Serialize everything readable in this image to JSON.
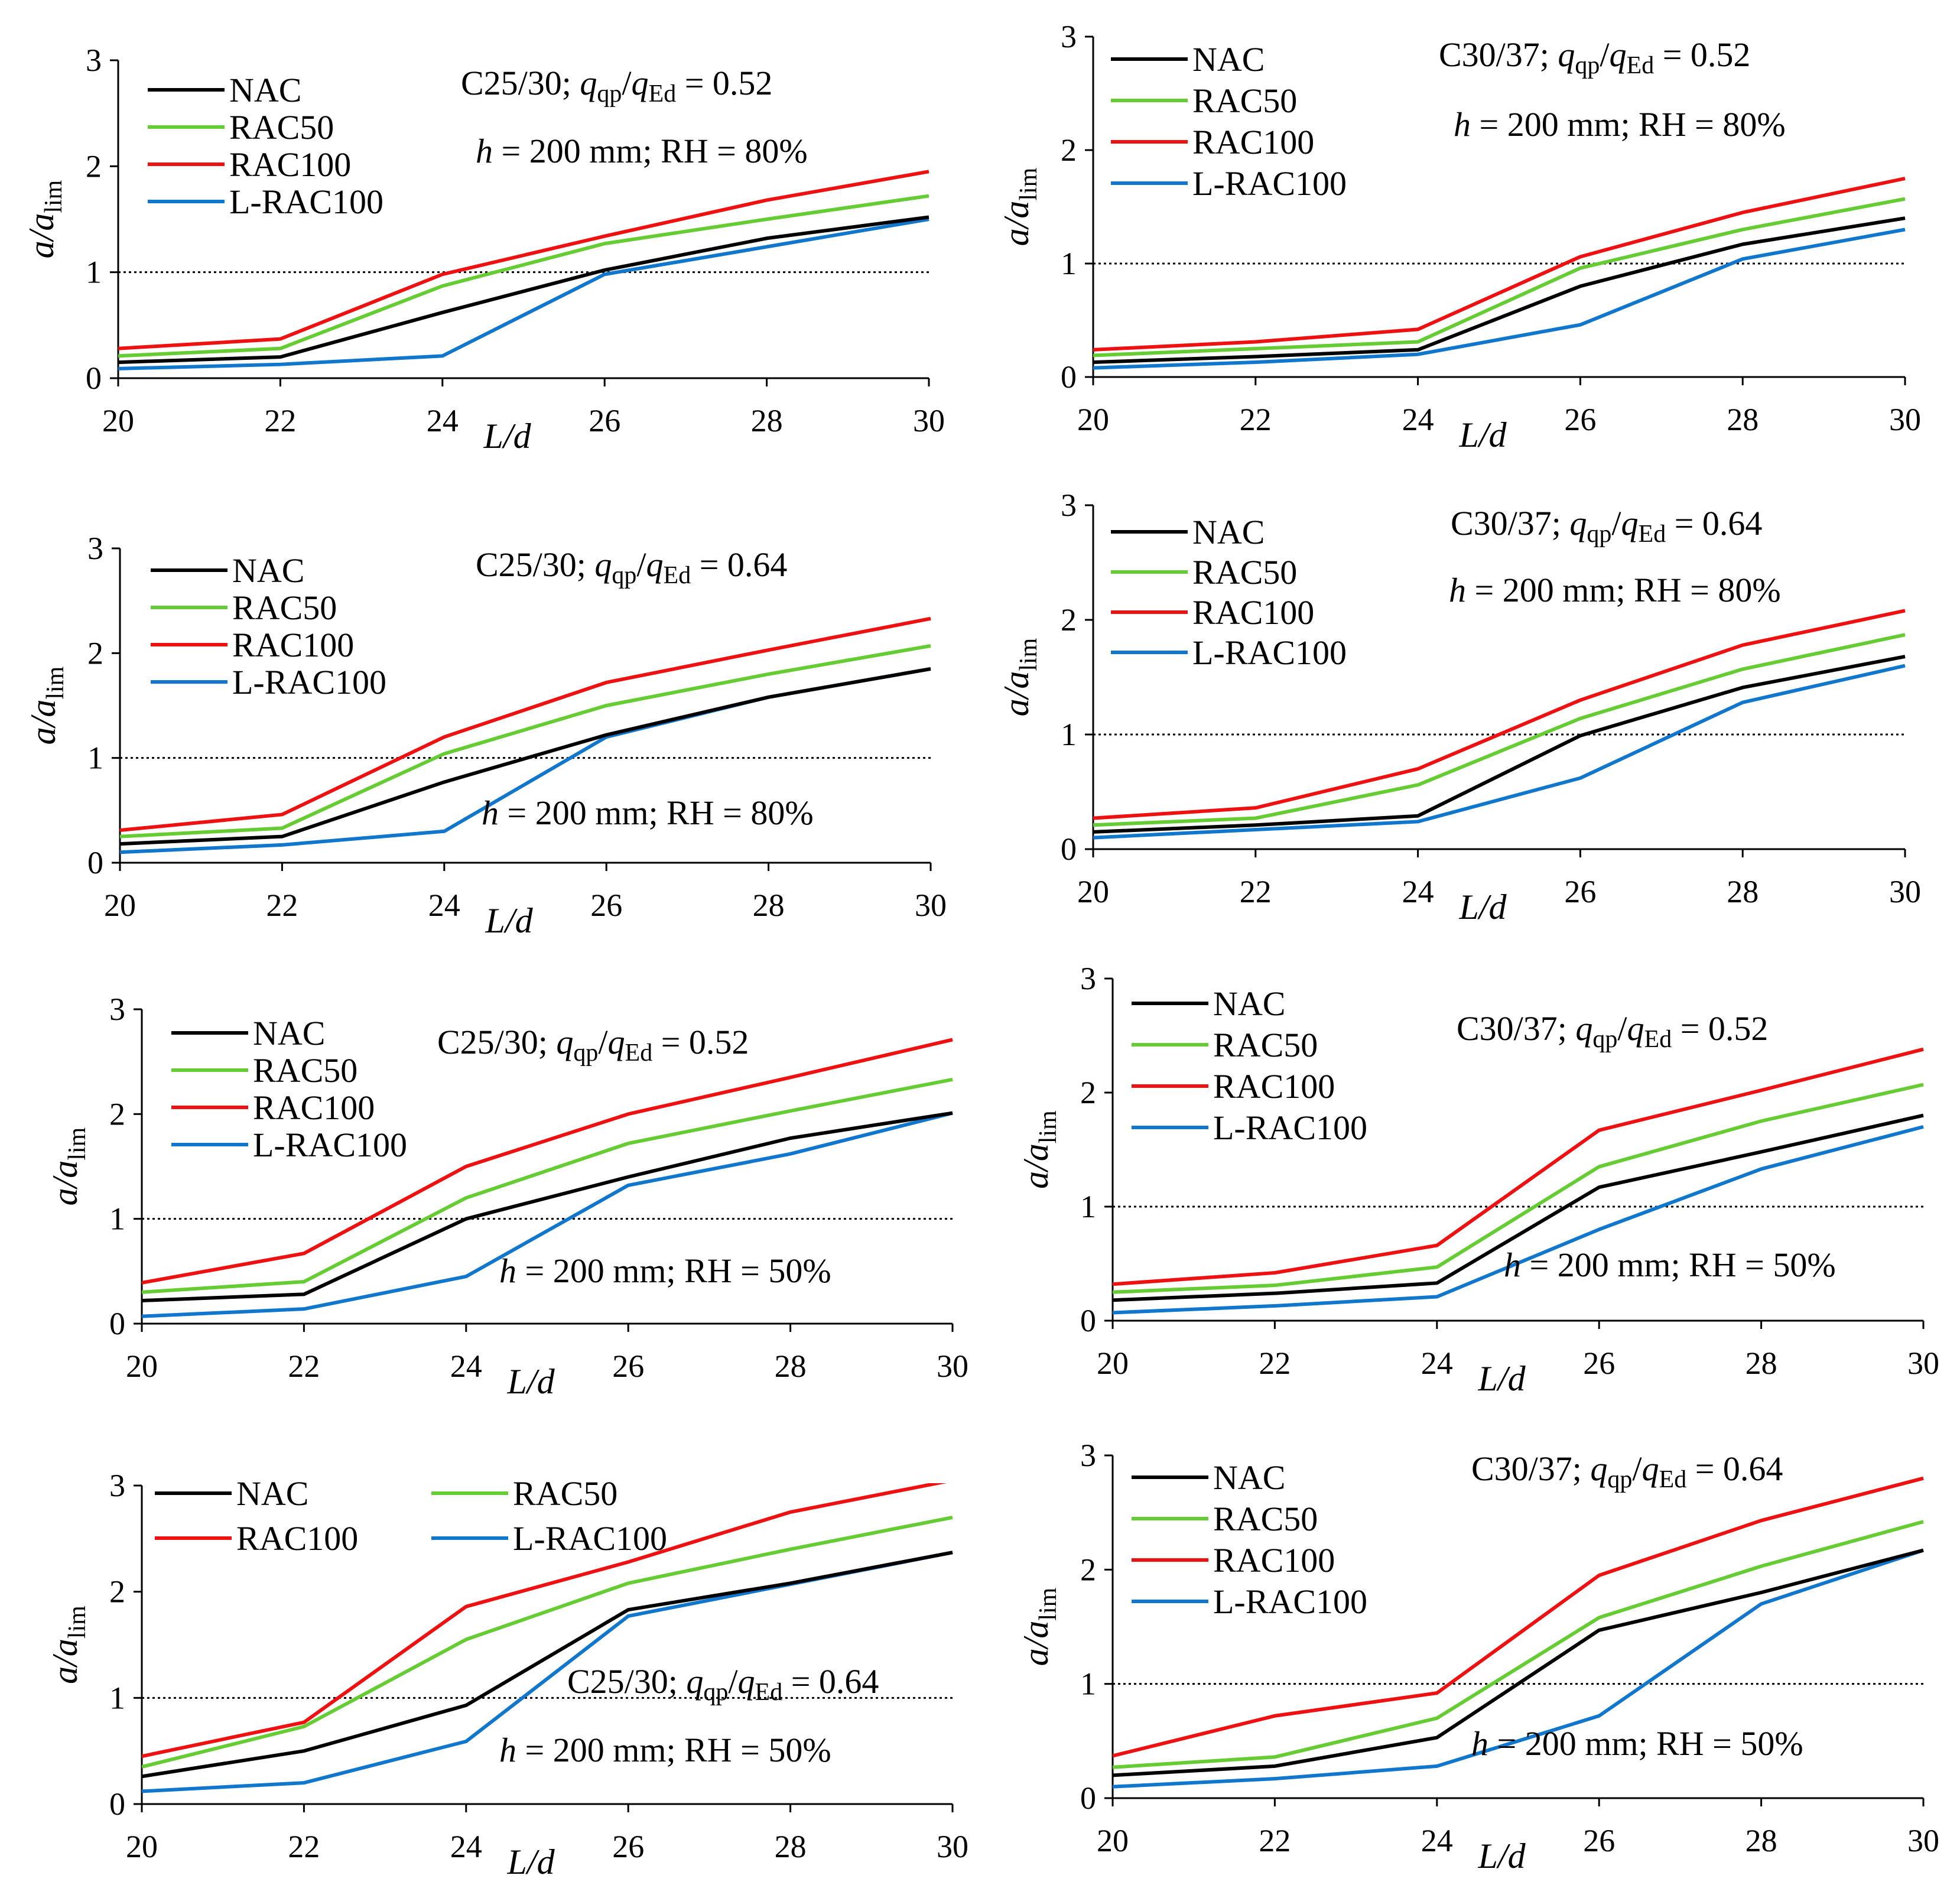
{
  "colors": {
    "NAC": "#000000",
    "RAC50": "#66CC33",
    "RAC100": "#EE1111",
    "L-RAC100": "#1177CC",
    "axis": "#000000",
    "reference": "#000000"
  },
  "chart_data": [
    {
      "type": "line",
      "panel": "top-left",
      "x": [
        20,
        22,
        24,
        26,
        28,
        30
      ],
      "xlim": [
        20,
        30
      ],
      "ylim": [
        0,
        3
      ],
      "xticks": [
        "20",
        "22",
        "24",
        "26",
        "28",
        "30"
      ],
      "yticks": [
        "0",
        "1",
        "2",
        "3"
      ],
      "ylabel": {
        "main": "a/a",
        "sub": "lim"
      },
      "xlabel": "L/d",
      "reference_line": 1,
      "legend_layout": "column",
      "legend_entries": [
        "NAC",
        "RAC50",
        "RAC100",
        "L-RAC100"
      ],
      "annotations": [
        {
          "kind": "ratio",
          "prefix": "C25/30; ",
          "q1": "q",
          "s1": "qp",
          "q2": "q",
          "s2": "Ed",
          "value": " = 0.52"
        },
        {
          "kind": "geom",
          "h": "h",
          "rest": " = 200 mm; RH = 80%"
        }
      ],
      "series": [
        {
          "name": "NAC",
          "values": [
            0.15,
            0.2,
            0.62,
            1.02,
            1.32,
            1.52
          ]
        },
        {
          "name": "RAC50",
          "values": [
            0.21,
            0.28,
            0.87,
            1.27,
            1.5,
            1.72
          ]
        },
        {
          "name": "RAC100",
          "values": [
            0.28,
            0.37,
            0.98,
            1.34,
            1.68,
            1.95
          ]
        },
        {
          "name": "L-RAC100",
          "values": [
            0.09,
            0.13,
            0.21,
            0.98,
            1.24,
            1.5
          ]
        }
      ]
    },
    {
      "type": "line",
      "panel": "top-right",
      "x": [
        20,
        22,
        24,
        26,
        28,
        30
      ],
      "xlim": [
        20,
        30
      ],
      "ylim": [
        0,
        3
      ],
      "xticks": [
        "20",
        "22",
        "24",
        "26",
        "28",
        "30"
      ],
      "yticks": [
        "0",
        "1",
        "2",
        "3"
      ],
      "ylabel": {
        "main": "a/a",
        "sub": "lim"
      },
      "xlabel": "L/d",
      "reference_line": 1,
      "legend_layout": "column",
      "legend_entries": [
        "NAC",
        "RAC50",
        "RAC100",
        "L-RAC100"
      ],
      "annotations": [
        {
          "kind": "ratio",
          "prefix": "C30/37; ",
          "q1": "q",
          "s1": "qp",
          "q2": "q",
          "s2": "Ed",
          "value": " = 0.52"
        },
        {
          "kind": "geom",
          "h": "h",
          "rest": " = 200 mm; RH = 80%"
        }
      ],
      "series": [
        {
          "name": "NAC",
          "values": [
            0.13,
            0.18,
            0.24,
            0.8,
            1.17,
            1.4
          ]
        },
        {
          "name": "RAC50",
          "values": [
            0.19,
            0.25,
            0.31,
            0.96,
            1.3,
            1.57
          ]
        },
        {
          "name": "RAC100",
          "values": [
            0.24,
            0.31,
            0.42,
            1.06,
            1.45,
            1.75
          ]
        },
        {
          "name": "L-RAC100",
          "values": [
            0.08,
            0.13,
            0.2,
            0.46,
            1.04,
            1.3
          ]
        }
      ]
    },
    {
      "type": "line",
      "panel": "row2-left",
      "x": [
        20,
        22,
        24,
        26,
        28,
        30
      ],
      "xlim": [
        20,
        30
      ],
      "ylim": [
        0,
        3
      ],
      "xticks": [
        "20",
        "22",
        "24",
        "26",
        "28",
        "30"
      ],
      "yticks": [
        "0",
        "1",
        "2",
        "3"
      ],
      "ylabel": {
        "main": "a/a",
        "sub": "lim"
      },
      "xlabel": "L/d",
      "reference_line": 1,
      "legend_layout": "column",
      "legend_entries": [
        "NAC",
        "RAC50",
        "RAC100",
        "L-RAC100"
      ],
      "annotations": [
        {
          "kind": "ratio",
          "prefix": "C25/30; ",
          "q1": "q",
          "s1": "qp",
          "q2": "q",
          "s2": "Ed",
          "value": " = 0.64"
        },
        {
          "kind": "geom",
          "h": "h",
          "rest": " = 200 mm; RH = 80%"
        }
      ],
      "series": [
        {
          "name": "NAC",
          "values": [
            0.18,
            0.25,
            0.77,
            1.22,
            1.58,
            1.85
          ]
        },
        {
          "name": "RAC50",
          "values": [
            0.25,
            0.33,
            1.04,
            1.5,
            1.8,
            2.07
          ]
        },
        {
          "name": "RAC100",
          "values": [
            0.31,
            0.46,
            1.2,
            1.72,
            2.03,
            2.33
          ]
        },
        {
          "name": "L-RAC100",
          "values": [
            0.1,
            0.17,
            0.3,
            1.2,
            1.58,
            1.85
          ]
        }
      ]
    },
    {
      "type": "line",
      "panel": "row2-right",
      "x": [
        20,
        22,
        24,
        26,
        28,
        30
      ],
      "xlim": [
        20,
        30
      ],
      "ylim": [
        0,
        3
      ],
      "xticks": [
        "20",
        "22",
        "24",
        "26",
        "28",
        "30"
      ],
      "yticks": [
        "0",
        "1",
        "2",
        "3"
      ],
      "ylabel": {
        "main": "a/a",
        "sub": "lim"
      },
      "xlabel": "L/d",
      "reference_line": 1,
      "legend_layout": "column",
      "legend_entries": [
        "NAC",
        "RAC50",
        "RAC100",
        "L-RAC100"
      ],
      "annotations": [
        {
          "kind": "ratio",
          "prefix": "C30/37; ",
          "q1": "q",
          "s1": "qp",
          "q2": "q",
          "s2": "Ed",
          "value": " = 0.64"
        },
        {
          "kind": "geom",
          "h": "h",
          "rest": " = 200 mm; RH = 80%"
        }
      ],
      "series": [
        {
          "name": "NAC",
          "values": [
            0.15,
            0.21,
            0.29,
            0.99,
            1.41,
            1.68
          ]
        },
        {
          "name": "RAC50",
          "values": [
            0.21,
            0.27,
            0.56,
            1.14,
            1.57,
            1.87
          ]
        },
        {
          "name": "RAC100",
          "values": [
            0.27,
            0.36,
            0.7,
            1.3,
            1.78,
            2.08
          ]
        },
        {
          "name": "L-RAC100",
          "values": [
            0.1,
            0.17,
            0.24,
            0.62,
            1.28,
            1.6
          ]
        }
      ]
    },
    {
      "type": "line",
      "panel": "row3-left",
      "x": [
        20,
        22,
        24,
        26,
        28,
        30
      ],
      "xlim": [
        20,
        30
      ],
      "ylim": [
        0,
        3
      ],
      "xticks": [
        "20",
        "22",
        "24",
        "26",
        "28",
        "30"
      ],
      "yticks": [
        "0",
        "1",
        "2",
        "3"
      ],
      "ylabel": {
        "main": "a/a",
        "sub": "lim"
      },
      "xlabel": "L/d",
      "reference_line": 1,
      "legend_layout": "column",
      "legend_entries": [
        "NAC",
        "RAC50",
        "RAC100",
        "L-RAC100"
      ],
      "annotations": [
        {
          "kind": "ratio",
          "prefix": "C25/30; ",
          "q1": "q",
          "s1": "qp",
          "q2": "q",
          "s2": "Ed",
          "value": " = 0.52"
        },
        {
          "kind": "geom",
          "h": "h",
          "rest": " = 200 mm; RH = 50%"
        }
      ],
      "series": [
        {
          "name": "NAC",
          "values": [
            0.22,
            0.28,
            1.0,
            1.4,
            1.77,
            2.01
          ]
        },
        {
          "name": "RAC50",
          "values": [
            0.3,
            0.4,
            1.2,
            1.72,
            2.03,
            2.33
          ]
        },
        {
          "name": "RAC100",
          "values": [
            0.39,
            0.67,
            1.5,
            2.0,
            2.35,
            2.71
          ]
        },
        {
          "name": "L-RAC100",
          "values": [
            0.07,
            0.14,
            0.45,
            1.32,
            1.62,
            2.01
          ]
        }
      ]
    },
    {
      "type": "line",
      "panel": "row3-right",
      "x": [
        20,
        22,
        24,
        26,
        28,
        30
      ],
      "xlim": [
        20,
        30
      ],
      "ylim": [
        0,
        3
      ],
      "xticks": [
        "20",
        "22",
        "24",
        "26",
        "28",
        "30"
      ],
      "yticks": [
        "0",
        "1",
        "2",
        "3"
      ],
      "ylabel": {
        "main": "a/a",
        "sub": "lim"
      },
      "xlabel": "L/d",
      "reference_line": 1,
      "legend_layout": "column",
      "legend_entries": [
        "NAC",
        "RAC50",
        "RAC100",
        "L-RAC100"
      ],
      "annotations": [
        {
          "kind": "ratio",
          "prefix": "C30/37; ",
          "q1": "q",
          "s1": "qp",
          "q2": "q",
          "s2": "Ed",
          "value": " = 0.52"
        },
        {
          "kind": "geom",
          "h": "h",
          "rest": " = 200 mm; RH = 50%"
        }
      ],
      "series": [
        {
          "name": "NAC",
          "values": [
            0.18,
            0.24,
            0.33,
            1.17,
            1.48,
            1.8
          ]
        },
        {
          "name": "RAC50",
          "values": [
            0.25,
            0.31,
            0.47,
            1.35,
            1.75,
            2.07
          ]
        },
        {
          "name": "RAC100",
          "values": [
            0.32,
            0.42,
            0.66,
            1.67,
            2.02,
            2.38
          ]
        },
        {
          "name": "L-RAC100",
          "values": [
            0.07,
            0.13,
            0.21,
            0.8,
            1.33,
            1.7
          ]
        }
      ]
    },
    {
      "type": "line",
      "panel": "bottom-left",
      "x": [
        20,
        22,
        24,
        26,
        28,
        30
      ],
      "xlim": [
        20,
        30
      ],
      "ylim": [
        0,
        3
      ],
      "xticks": [
        "20",
        "22",
        "24",
        "26",
        "28",
        "30"
      ],
      "yticks": [
        "0",
        "1",
        "2",
        "3"
      ],
      "ylabel": {
        "main": "a/a",
        "sub": "lim"
      },
      "xlabel": "L/d",
      "reference_line": 1,
      "legend_layout": "grid",
      "legend_entries": [
        "NAC",
        "RAC50",
        "RAC100",
        "L-RAC100"
      ],
      "annotations": [
        {
          "kind": "ratio",
          "prefix": "C25/30; ",
          "q1": "q",
          "s1": "qp",
          "q2": "q",
          "s2": "Ed",
          "value": " = 0.64"
        },
        {
          "kind": "geom",
          "h": "h",
          "rest": " = 200 mm; RH = 50%"
        }
      ],
      "series": [
        {
          "name": "NAC",
          "values": [
            0.26,
            0.5,
            0.93,
            1.83,
            2.08,
            2.37
          ]
        },
        {
          "name": "RAC50",
          "values": [
            0.35,
            0.73,
            1.55,
            2.08,
            2.4,
            2.7
          ]
        },
        {
          "name": "RAC100",
          "values": [
            0.45,
            0.77,
            1.86,
            2.28,
            2.75,
            3.05
          ]
        },
        {
          "name": "L-RAC100",
          "values": [
            0.12,
            0.2,
            0.59,
            1.77,
            2.07,
            2.37
          ]
        }
      ]
    },
    {
      "type": "line",
      "panel": "bottom-right",
      "x": [
        20,
        22,
        24,
        26,
        28,
        30
      ],
      "xlim": [
        20,
        30
      ],
      "ylim": [
        0,
        3
      ],
      "xticks": [
        "20",
        "22",
        "24",
        "26",
        "28",
        "30"
      ],
      "yticks": [
        "0",
        "1",
        "2",
        "3"
      ],
      "ylabel": {
        "main": "a/a",
        "sub": "lim"
      },
      "xlabel": "L/d",
      "reference_line": 1,
      "legend_layout": "column",
      "legend_entries": [
        "NAC",
        "RAC50",
        "RAC100",
        "L-RAC100"
      ],
      "annotations": [
        {
          "kind": "ratio",
          "prefix": "C30/37; ",
          "q1": "q",
          "s1": "qp",
          "q2": "q",
          "s2": "Ed",
          "value": " = 0.64"
        },
        {
          "kind": "geom",
          "h": "h",
          "rest": " = 200 mm; RH = 50%"
        }
      ],
      "series": [
        {
          "name": "NAC",
          "values": [
            0.2,
            0.28,
            0.53,
            1.47,
            1.8,
            2.17
          ]
        },
        {
          "name": "RAC50",
          "values": [
            0.27,
            0.36,
            0.7,
            1.58,
            2.03,
            2.42
          ]
        },
        {
          "name": "RAC100",
          "values": [
            0.37,
            0.72,
            0.92,
            1.95,
            2.43,
            2.8
          ]
        },
        {
          "name": "L-RAC100",
          "values": [
            0.1,
            0.17,
            0.28,
            0.72,
            1.7,
            2.17
          ]
        }
      ]
    }
  ]
}
